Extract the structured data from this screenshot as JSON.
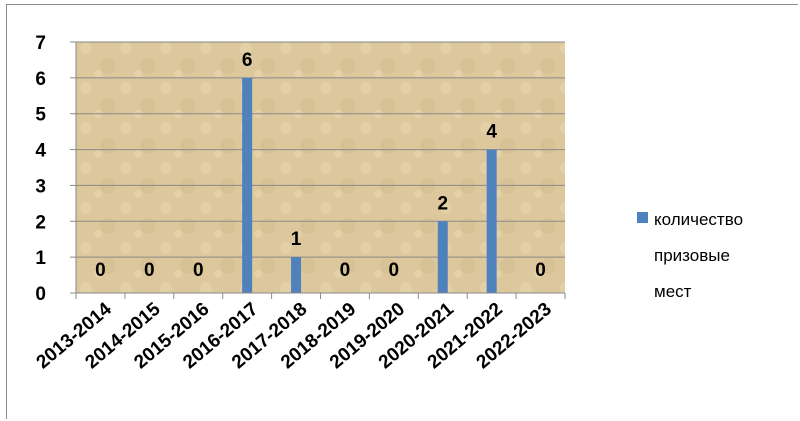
{
  "colors": {
    "bar": "#4f81bd",
    "plot_bg": "#dcc89c",
    "grid": "#8a8a8a",
    "axis": "#8a8a8a"
  },
  "chart_data": {
    "type": "bar",
    "categories": [
      "2013-2014",
      "2014-2015",
      "2015-2016",
      "2016-2017",
      "2017-2018",
      "2018-2019",
      "2019-2020",
      "2020-2021",
      "2021-2022",
      "2022-2023"
    ],
    "series": [
      {
        "name": "количество призовые мест",
        "values": [
          0,
          0,
          0,
          6,
          1,
          0,
          0,
          2,
          4,
          0
        ]
      }
    ],
    "data_labels": [
      "0",
      "0",
      "0",
      "6",
      "1",
      "0",
      "0",
      "2",
      "4",
      "0"
    ],
    "ylim": [
      0,
      7
    ],
    "yticks": [
      "0",
      "1",
      "2",
      "3",
      "4",
      "5",
      "6",
      "7"
    ],
    "grid": true,
    "legend": {
      "position": "right",
      "lines": [
        "количество",
        "призовые",
        "мест"
      ]
    },
    "title": "",
    "xlabel": "",
    "ylabel": ""
  }
}
